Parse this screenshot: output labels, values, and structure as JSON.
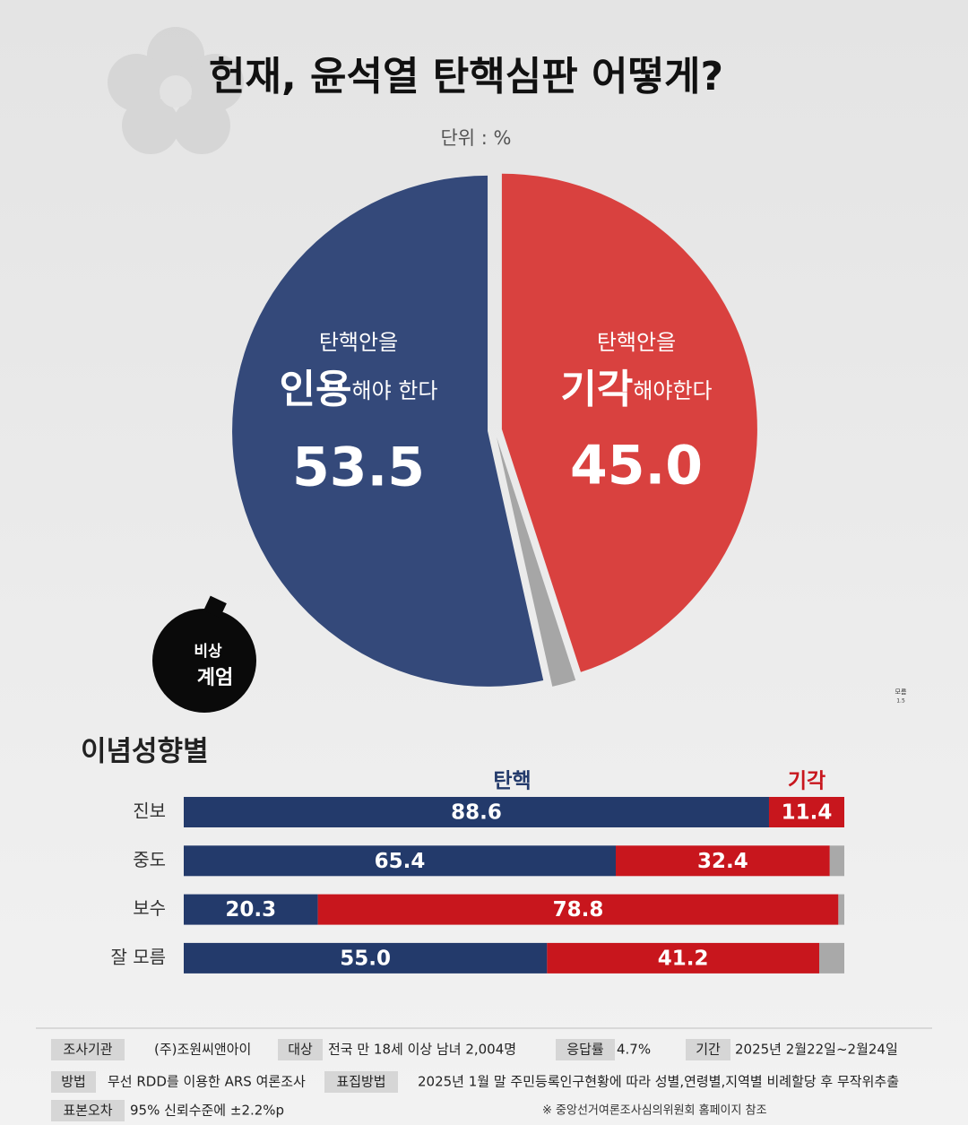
{
  "chart_data": [
    {
      "type": "pie",
      "title": "헌재, 윤석열 탄핵심판 어떻게?",
      "subtitle": "단위 : %",
      "categories": [
        "인용",
        "기각",
        "모름"
      ],
      "category_prefix": [
        "탄핵안을",
        "탄핵안을",
        null
      ],
      "category_suffix": [
        "해야 한다",
        "해야한다",
        null
      ],
      "values": [
        53.5,
        45,
        1.5
      ],
      "value_labels": [
        "53.5",
        "45.0",
        "1.5"
      ],
      "colors": [
        "#34497a",
        "#d9413f",
        "#a6a6a6"
      ],
      "annotations": [
        "비상",
        "계엄"
      ]
    },
    {
      "type": "bar",
      "orientation": "horizontal",
      "stacked": true,
      "title": "이념성향별",
      "categories": [
        "진보",
        "중도",
        "보수",
        "잘 모름"
      ],
      "xlim": [
        0,
        100
      ],
      "series": [
        {
          "name": "탄핵",
          "color": "#233a6b",
          "values": [
            88.6,
            65.4,
            20.3,
            55
          ],
          "value_labels": [
            "88.6",
            "65.4",
            "20.3",
            "55.0"
          ]
        },
        {
          "name": "기각",
          "color": "#c8161d",
          "values": [
            11.4,
            32.4,
            78.8,
            41.2
          ]
        },
        {
          "color": "#a9a9a9",
          "values": [
            0,
            2.2,
            0.9,
            3.8
          ]
        }
      ]
    }
  ],
  "footer": {
    "items": [
      {
        "label": "조사기관",
        "text": "(주)조원씨앤아이"
      },
      {
        "label": "대상",
        "text": "전국 만 18세 이상 남녀 2,004명"
      },
      {
        "label": "응답률",
        "text": "4.7%"
      },
      {
        "label": "기간",
        "text": "2025년 2월22일~2월24일"
      },
      {
        "label": "방법",
        "text": "무선 RDD를 이용한 ARS 여론조사"
      },
      {
        "label": "표집방법",
        "text": "2025년 1월 말 주민등록인구현황에 따라 성별,연령별,지역별 비례할당 후 무작위추출"
      },
      {
        "label": "표본오차",
        "text": "95% 신뢰수준에 ±2.2%p"
      }
    ],
    "note": "※ 중앙선거여론조사심의위원회 홈페이지 참조"
  }
}
